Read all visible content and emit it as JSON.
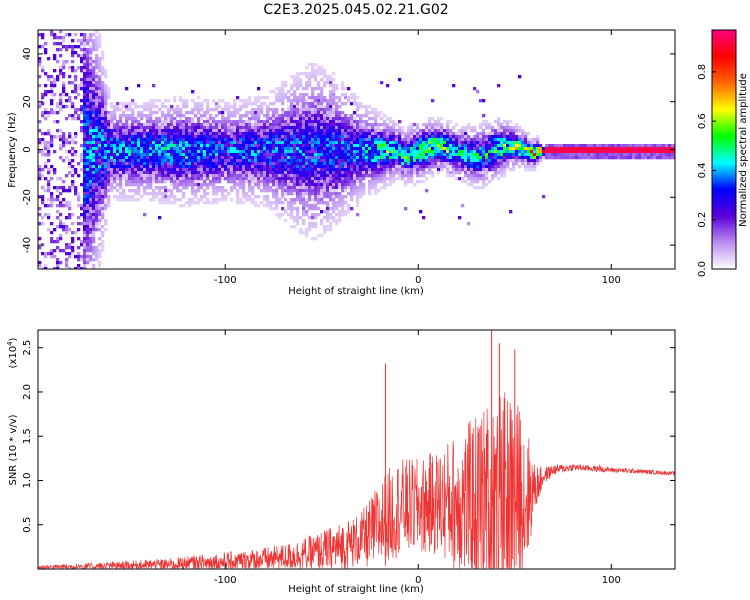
{
  "title": "C2E3.2025.045.02.21.G02",
  "chart_data": [
    {
      "type": "heatmap",
      "xlabel": "Height of straight line (km)",
      "ylabel": "Frequency (Hz)",
      "xlim": [
        -197,
        133
      ],
      "ylim": [
        -50,
        50
      ],
      "x_ticks": [
        -100,
        0,
        100
      ],
      "y_ticks": [
        -40,
        -20,
        0,
        20,
        40
      ],
      "colorbar": {
        "label": "Normalized spectral amplitude",
        "range": [
          0,
          0.97
        ],
        "ticks": [
          "0.0",
          "0.2",
          "0.4",
          "0.6",
          "0.8"
        ],
        "tick_values": [
          0.0,
          0.2,
          0.4,
          0.6,
          0.8
        ],
        "colors": [
          "#ffffff",
          "#b98cf0",
          "#5a00d8",
          "#0000ff",
          "#00ffff",
          "#00ff00",
          "#ffff00",
          "#ff6600",
          "#ff0000",
          "#ff0080"
        ]
      },
      "profile": {
        "x": [
          -197,
          -175,
          -160,
          -140,
          -120,
          -100,
          -80,
          -65,
          -55,
          -45,
          -30,
          -20,
          -10,
          0,
          10,
          20,
          30,
          40,
          50,
          60,
          65,
          80,
          100,
          133
        ],
        "amplitude": [
          0.1,
          0.3,
          0.32,
          0.35,
          0.35,
          0.3,
          0.3,
          0.28,
          0.28,
          0.28,
          0.3,
          0.45,
          0.45,
          0.5,
          0.55,
          0.45,
          0.4,
          0.45,
          0.55,
          0.7,
          0.9,
          0.95,
          0.95,
          0.95
        ],
        "spread_hz": [
          45,
          40,
          9,
          9,
          10,
          9,
          10,
          14,
          16,
          14,
          9,
          7,
          5,
          6,
          5,
          5,
          6,
          6,
          4,
          3,
          1,
          1,
          1,
          1
        ]
      }
    },
    {
      "type": "line",
      "xlabel": "Height of straight line (km)",
      "ylabel": "SNR (10 * v/v)",
      "y_multiplier": "(x10",
      "y_multiplier_exp": "4",
      "y_multiplier_close": ")",
      "xlim": [
        -197,
        133
      ],
      "ylim": [
        0,
        2.7
      ],
      "x_ticks": [
        -100,
        0,
        100
      ],
      "y_ticks": [
        "0.5",
        "1.0",
        "1.5",
        "2.0",
        "2.5"
      ],
      "y_tick_values": [
        0.5,
        1.0,
        1.5,
        2.0,
        2.5
      ],
      "color": "#ee3333",
      "envelope": {
        "x": [
          -197,
          -170,
          -150,
          -130,
          -110,
          -90,
          -70,
          -55,
          -40,
          -30,
          -25,
          -20,
          -15,
          -10,
          0,
          10,
          20,
          30,
          40,
          48,
          55,
          60,
          65,
          70,
          80,
          100,
          133
        ],
        "base": [
          0.02,
          0.03,
          0.04,
          0.05,
          0.07,
          0.09,
          0.13,
          0.18,
          0.25,
          0.33,
          0.4,
          0.5,
          0.6,
          0.7,
          0.7,
          0.75,
          0.75,
          0.75,
          0.8,
          0.8,
          0.8,
          0.9,
          1.05,
          1.12,
          1.15,
          1.12,
          1.08
        ],
        "amp": [
          0.02,
          0.04,
          0.05,
          0.07,
          0.1,
          0.12,
          0.15,
          0.2,
          0.28,
          0.3,
          0.4,
          0.5,
          0.55,
          0.55,
          0.55,
          0.6,
          0.8,
          1.0,
          1.2,
          1.2,
          1.0,
          0.3,
          0.1,
          0.06,
          0.04,
          0.03,
          0.02
        ]
      },
      "peaks": [
        {
          "x": -17,
          "y": 2.32
        },
        {
          "x": 38,
          "y": 2.7
        },
        {
          "x": 50,
          "y": 2.48
        },
        {
          "x": 42,
          "y": 2.55
        },
        {
          "x": 94,
          "y": 1.18
        }
      ]
    }
  ]
}
